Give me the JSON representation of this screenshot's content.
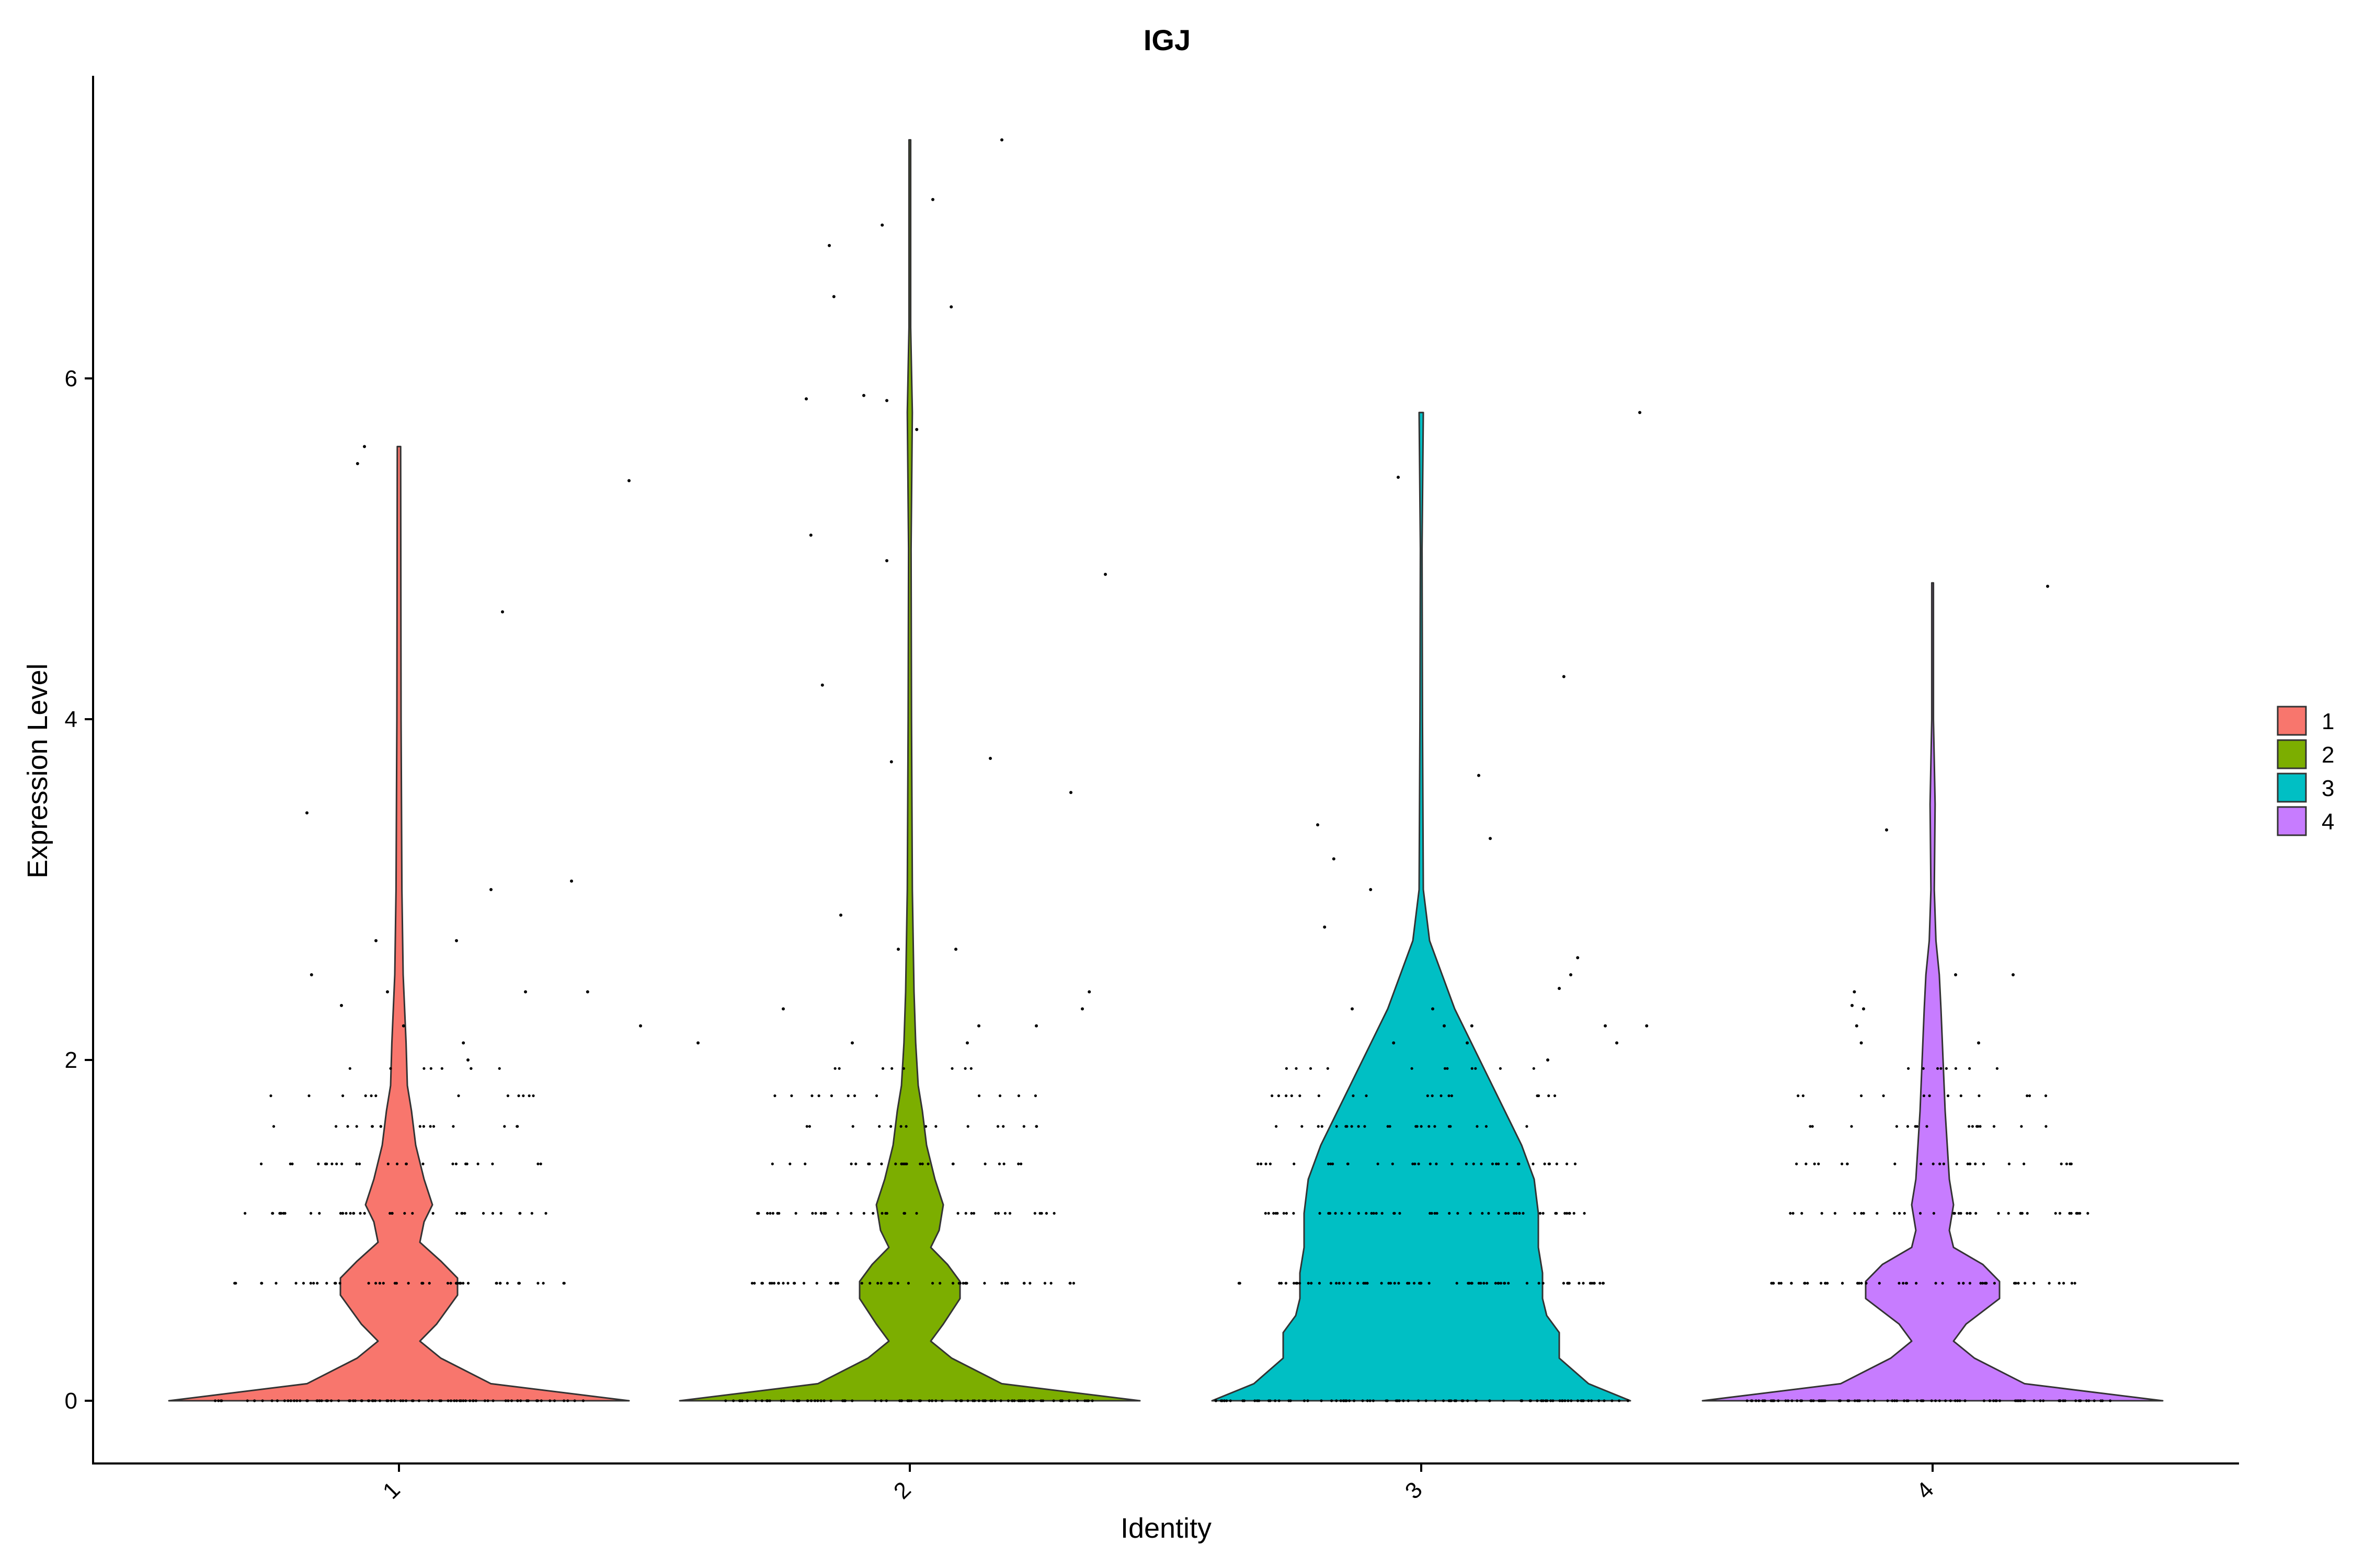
{
  "chart_data": {
    "type": "violin",
    "title": "IGJ",
    "xlabel": "Identity",
    "ylabel": "Expression Level",
    "categories": [
      "1",
      "2",
      "3",
      "4"
    ],
    "ylim": [
      -0.37,
      7.8
    ],
    "yticks": [
      0,
      2,
      4,
      6
    ],
    "ytick_labels": [
      "0",
      "2",
      "4",
      "6"
    ],
    "colors": {
      "1": "#F8766D",
      "2": "#7CAE00",
      "3": "#00BFC4",
      "4": "#C77CFF"
    },
    "legend": {
      "position": "right",
      "entries": [
        {
          "label": "1",
          "color": "#F8766D"
        },
        {
          "label": "2",
          "color": "#7CAE00"
        },
        {
          "label": "3",
          "color": "#00BFC4"
        },
        {
          "label": "4",
          "color": "#C77CFF"
        }
      ]
    },
    "series": [
      {
        "name": "1",
        "max": 5.6,
        "density": [
          [
            0,
            0.55
          ],
          [
            0.1,
            0.22
          ],
          [
            0.25,
            0.1
          ],
          [
            0.35,
            0.05
          ],
          [
            0.45,
            0.09
          ],
          [
            0.62,
            0.14
          ],
          [
            0.72,
            0.14
          ],
          [
            0.82,
            0.1
          ],
          [
            0.93,
            0.05
          ],
          [
            1.05,
            0.06
          ],
          [
            1.15,
            0.08
          ],
          [
            1.3,
            0.06
          ],
          [
            1.5,
            0.04
          ],
          [
            1.7,
            0.03
          ],
          [
            1.85,
            0.02
          ],
          [
            2.1,
            0.017
          ],
          [
            2.5,
            0.01
          ],
          [
            3.0,
            0.007
          ],
          [
            4.0,
            0.005
          ],
          [
            5.6,
            0.004
          ]
        ],
        "outliers": [
          [
            -0.4,
            3.45
          ],
          [
            -0.38,
            2.5
          ],
          [
            -0.25,
            2.32
          ],
          [
            -0.18,
            5.5
          ],
          [
            -0.1,
            2.7
          ],
          [
            -0.05,
            2.4
          ],
          [
            0.02,
            2.2
          ],
          [
            -0.15,
            5.6
          ],
          [
            0.25,
            2.7
          ],
          [
            0.28,
            2.1
          ],
          [
            0.3,
            2.0
          ],
          [
            0.45,
            4.63
          ],
          [
            0.4,
            3.0
          ],
          [
            0.55,
            2.4
          ],
          [
            0.75,
            3.05
          ],
          [
            0.82,
            2.4
          ],
          [
            1.0,
            5.4
          ],
          [
            1.05,
            2.2
          ],
          [
            1.3,
            2.1
          ]
        ]
      },
      {
        "name": "2",
        "max": 7.4,
        "density": [
          [
            0,
            0.55
          ],
          [
            0.1,
            0.22
          ],
          [
            0.25,
            0.1
          ],
          [
            0.35,
            0.05
          ],
          [
            0.45,
            0.08
          ],
          [
            0.6,
            0.12
          ],
          [
            0.7,
            0.12
          ],
          [
            0.8,
            0.09
          ],
          [
            0.9,
            0.05
          ],
          [
            1.0,
            0.07
          ],
          [
            1.15,
            0.08
          ],
          [
            1.3,
            0.06
          ],
          [
            1.5,
            0.04
          ],
          [
            1.7,
            0.03
          ],
          [
            1.85,
            0.02
          ],
          [
            2.1,
            0.014
          ],
          [
            2.4,
            0.01
          ],
          [
            3.0,
            0.006
          ],
          [
            4.0,
            0.004
          ],
          [
            5.0,
            0.003
          ],
          [
            5.8,
            0.006
          ],
          [
            6.3,
            0.002
          ],
          [
            7.4,
            0.002
          ]
        ],
        "outliers": [
          [
            -0.55,
            2.3
          ],
          [
            -0.45,
            5.88
          ],
          [
            -0.43,
            5.08
          ],
          [
            -0.38,
            4.2
          ],
          [
            -0.35,
            6.78
          ],
          [
            -0.33,
            6.48
          ],
          [
            -0.3,
            2.85
          ],
          [
            -0.25,
            2.1
          ],
          [
            -0.2,
            5.9
          ],
          [
            -0.12,
            6.9
          ],
          [
            -0.1,
            4.93
          ],
          [
            -0.1,
            5.87
          ],
          [
            -0.08,
            3.75
          ],
          [
            -0.05,
            2.65
          ],
          [
            0.03,
            5.7
          ],
          [
            0.1,
            7.05
          ],
          [
            0.18,
            6.42
          ],
          [
            0.2,
            2.65
          ],
          [
            0.35,
            3.77
          ],
          [
            0.3,
            2.2
          ],
          [
            0.25,
            2.1
          ],
          [
            0.4,
            7.4
          ],
          [
            0.55,
            2.2
          ],
          [
            0.7,
            3.57
          ],
          [
            0.78,
            2.4
          ],
          [
            0.75,
            2.3
          ],
          [
            0.85,
            4.85
          ]
        ]
      },
      {
        "name": "3",
        "max": 5.8,
        "density": [
          [
            0,
            0.5
          ],
          [
            0.1,
            0.4
          ],
          [
            0.25,
            0.33
          ],
          [
            0.4,
            0.33
          ],
          [
            0.5,
            0.3
          ],
          [
            0.6,
            0.29
          ],
          [
            0.75,
            0.29
          ],
          [
            0.9,
            0.28
          ],
          [
            1.1,
            0.28
          ],
          [
            1.3,
            0.27
          ],
          [
            1.5,
            0.24
          ],
          [
            1.7,
            0.2
          ],
          [
            1.9,
            0.16
          ],
          [
            2.1,
            0.12
          ],
          [
            2.3,
            0.08
          ],
          [
            2.5,
            0.05
          ],
          [
            2.7,
            0.02
          ],
          [
            3.0,
            0.005
          ],
          [
            3.5,
            0.004
          ],
          [
            4.0,
            0.003
          ],
          [
            5.0,
            0.002
          ],
          [
            5.8,
            0.005
          ]
        ],
        "outliers": [
          [
            -0.45,
            3.38
          ],
          [
            -0.42,
            2.78
          ],
          [
            -0.38,
            3.18
          ],
          [
            -0.3,
            2.3
          ],
          [
            -0.22,
            3.0
          ],
          [
            -0.12,
            2.1
          ],
          [
            -0.1,
            5.42
          ],
          [
            0.05,
            2.3
          ],
          [
            0.1,
            2.2
          ],
          [
            0.3,
            3.3
          ],
          [
            0.22,
            2.2
          ],
          [
            0.2,
            2.1
          ],
          [
            0.25,
            3.67
          ],
          [
            0.55,
            2.0
          ],
          [
            0.6,
            2.42
          ],
          [
            0.62,
            4.25
          ],
          [
            0.65,
            2.5
          ],
          [
            0.68,
            2.6
          ],
          [
            0.8,
            2.2
          ],
          [
            0.85,
            2.1
          ],
          [
            0.98,
            2.2
          ],
          [
            0.95,
            5.8
          ]
        ]
      },
      {
        "name": "4",
        "max": 4.8,
        "density": [
          [
            0,
            0.55
          ],
          [
            0.1,
            0.22
          ],
          [
            0.25,
            0.1
          ],
          [
            0.35,
            0.05
          ],
          [
            0.45,
            0.08
          ],
          [
            0.6,
            0.16
          ],
          [
            0.7,
            0.16
          ],
          [
            0.8,
            0.12
          ],
          [
            0.9,
            0.05
          ],
          [
            1.0,
            0.04
          ],
          [
            1.15,
            0.05
          ],
          [
            1.3,
            0.04
          ],
          [
            1.5,
            0.035
          ],
          [
            1.7,
            0.03
          ],
          [
            2.0,
            0.025
          ],
          [
            2.3,
            0.02
          ],
          [
            2.5,
            0.016
          ],
          [
            2.7,
            0.008
          ],
          [
            3.0,
            0.004
          ],
          [
            3.5,
            0.006
          ],
          [
            4.0,
            0.002
          ],
          [
            4.8,
            0.002
          ]
        ],
        "outliers": [
          [
            -0.34,
            2.4
          ],
          [
            -0.33,
            2.2
          ],
          [
            -0.31,
            2.1
          ],
          [
            -0.3,
            2.3
          ],
          [
            -0.35,
            2.32
          ],
          [
            -0.2,
            3.35
          ],
          [
            0.1,
            2.5
          ],
          [
            0.35,
            2.5
          ],
          [
            0.5,
            4.78
          ],
          [
            0.2,
            2.1
          ]
        ]
      }
    ]
  }
}
